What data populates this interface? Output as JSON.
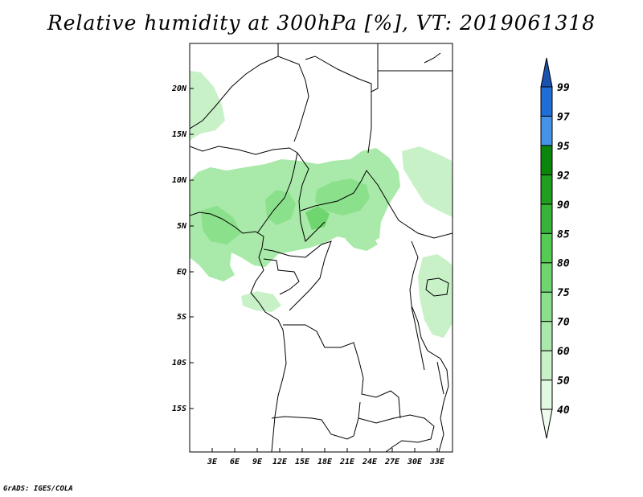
{
  "title": "Relative humidity at 300hPa [%], VT: 2019061318",
  "credit": "GrADS: IGES/COLA",
  "map": {
    "lat_labels": [
      "20N",
      "15N",
      "10N",
      "5N",
      "EQ",
      "5S",
      "10S",
      "15S"
    ],
    "lon_labels": [
      "3E",
      "6E",
      "9E",
      "12E",
      "15E",
      "18E",
      "21E",
      "24E",
      "27E",
      "30E",
      "33E"
    ]
  },
  "colorbar": {
    "levels": [
      "40",
      "50",
      "60",
      "70",
      "75",
      "80",
      "85",
      "90",
      "92",
      "95",
      "97",
      "99"
    ],
    "colors": [
      "#f0fcf0",
      "#e1f8e1",
      "#c8f1c8",
      "#a9e9a9",
      "#8be08b",
      "#6fd66f",
      "#54cc54",
      "#37b437",
      "#1f9e1f",
      "#0a870a",
      "#4493e8",
      "#1f6dd6",
      "#1a52b0"
    ]
  }
}
